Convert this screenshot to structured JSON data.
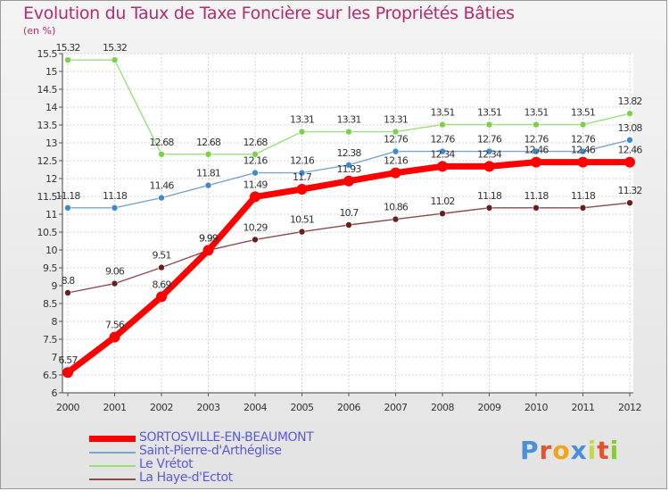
{
  "title": "Evolution du Taux de Taxe Foncière sur les Propriétés Bâties",
  "subtitle": "(en %)",
  "logo_text": "Proxiti",
  "chart_data": {
    "type": "line",
    "title": "Evolution du Taux de Taxe Foncière sur les Propriétés Bâties",
    "ylabel": "(en %)",
    "xlabel": "",
    "x": [
      "2000",
      "2001",
      "2002",
      "2003",
      "2004",
      "2005",
      "2006",
      "2007",
      "2008",
      "2009",
      "2010",
      "2011",
      "2012"
    ],
    "ylim": [
      6,
      15.5
    ],
    "yticks": [
      6,
      6.5,
      7,
      7.5,
      8,
      8.5,
      9,
      9.5,
      10,
      10.5,
      11,
      11.5,
      12,
      12.5,
      13,
      13.5,
      14,
      14.5,
      15,
      15.5
    ],
    "ytick_labels": [
      "6",
      "6.5",
      "7",
      "7.5",
      "8",
      "8.5",
      "9",
      "9.5",
      "10",
      "10.5",
      "11",
      "11.5",
      "12",
      "12.5",
      "13",
      "13.5",
      "14",
      "14.5",
      "15",
      "15.5"
    ],
    "grid": true,
    "legend_position": "bottom-left",
    "series": [
      {
        "name": "SORTOSVILLE-EN-BEAUMONT",
        "color": "#ff0000",
        "label_color": "#5a5adc",
        "width": 7,
        "marker": 6,
        "values": [
          6.57,
          7.56,
          8.69,
          9.99,
          11.49,
          11.7,
          11.93,
          12.16,
          12.34,
          12.34,
          12.46,
          12.46,
          12.46
        ],
        "labels": [
          "6.57",
          "7.56",
          "8.69",
          "9.99",
          "11.49",
          "11.7",
          "11.93",
          "12.16",
          "12.34",
          "12.34",
          "12.46",
          "12.46",
          "12.46"
        ]
      },
      {
        "name": "Saint-Pierre-d'Arthéglise",
        "color": "#7aa5cd",
        "label_color": "#5a5adc",
        "width": 1.4,
        "marker": 3.5,
        "marker_color": "#3c8ad0",
        "values": [
          11.18,
          11.18,
          11.46,
          11.81,
          12.16,
          12.16,
          12.38,
          12.76,
          12.76,
          12.76,
          12.76,
          12.76,
          13.08
        ],
        "labels": [
          "11.18",
          "11.18",
          "11.46",
          "11.81",
          "12.16",
          "12.16",
          "12.38",
          "12.76",
          "12.76",
          "12.76",
          "12.76",
          "12.76",
          "13.08"
        ]
      },
      {
        "name": "Le Vrétot",
        "color": "#98e07a",
        "label_color": "#5a5adc",
        "width": 1.4,
        "marker": 3.5,
        "marker_color": "#7bd14a",
        "values": [
          15.32,
          15.32,
          12.68,
          12.68,
          12.68,
          13.31,
          13.31,
          13.31,
          13.51,
          13.51,
          13.51,
          13.51,
          13.82
        ],
        "labels": [
          "15.32",
          "15.32",
          "12.68",
          "12.68",
          "12.68",
          "13.31",
          "13.31",
          "13.31",
          "13.51",
          "13.51",
          "13.51",
          "13.51",
          "13.82"
        ]
      },
      {
        "name": "La Haye-d'Ectot",
        "color": "#8a4a4a",
        "label_color": "#5a5adc",
        "width": 1.4,
        "marker": 3.5,
        "marker_color": "#6a1f1f",
        "values": [
          8.8,
          9.06,
          9.51,
          9.99,
          10.29,
          10.51,
          10.7,
          10.86,
          11.02,
          11.18,
          11.18,
          11.18,
          11.32
        ],
        "labels": [
          "8.8",
          "9.06",
          "9.51",
          "9.99",
          "10.29",
          "10.51",
          "10.7",
          "10.86",
          "11.02",
          "11.18",
          "11.18",
          "11.18",
          "11.32"
        ]
      }
    ]
  }
}
